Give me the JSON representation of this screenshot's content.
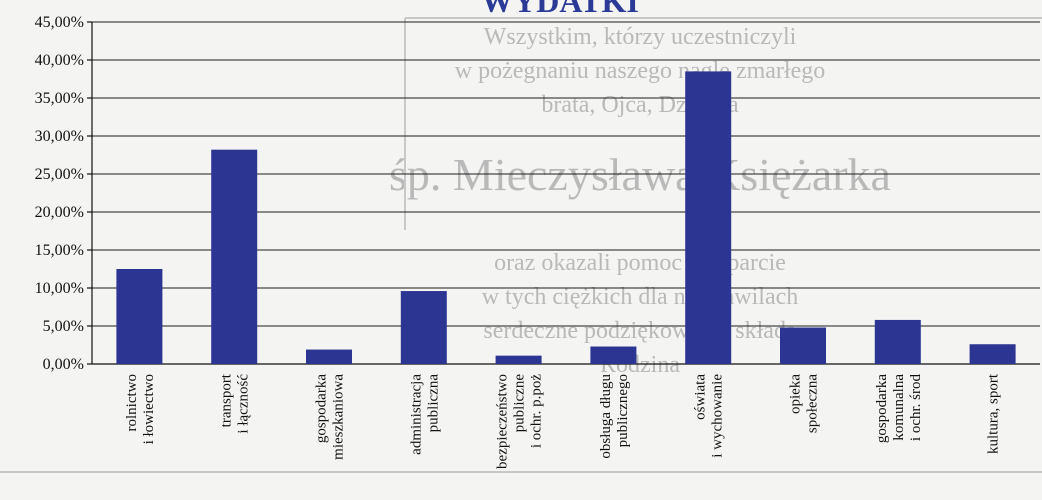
{
  "chart_data": {
    "type": "bar",
    "title": "WYDATKI",
    "xlabel": "",
    "ylabel": "",
    "ylim": [
      0,
      45
    ],
    "yticks": [
      "0,00%",
      "5,00%",
      "10,00%",
      "15,00%",
      "20,00%",
      "25,00%",
      "30,00%",
      "35,00%",
      "40,00%",
      "45,00%"
    ],
    "grid": true,
    "legend": "none",
    "bar_color": "#2d3593",
    "categories": [
      [
        "rolnictwo",
        "i łowiectwo"
      ],
      [
        "transport",
        "i łączność"
      ],
      [
        "gospodarka",
        "mieszkaniowa"
      ],
      [
        "administracja",
        "publiczna"
      ],
      [
        "bezpieczeństwo",
        "publiczne",
        "i ochr. p.poż"
      ],
      [
        "obsługa długu",
        "publicznego"
      ],
      [
        "oświata",
        "i wychowanie"
      ],
      [
        "opieka",
        "społeczna"
      ],
      [
        "gospodarka",
        "komunalna",
        "i ochr. środ"
      ],
      [
        "kultura, sport"
      ]
    ],
    "values": [
      12.5,
      28.2,
      1.9,
      9.6,
      1.1,
      2.3,
      38.5,
      4.8,
      5.8,
      2.6
    ]
  },
  "background_text": [
    "Wszystkim, którzy uczestniczyli",
    "w pożegnaniu naszego nagle zmarłego",
    "brata, Ojca, Dziadka",
    "śp. Mieczysława Księżarka",
    "oraz okazali pomoc i wsparcie",
    "w tych ciężkich dla nas chwilach",
    "serdeczne podziękowania składa",
    "Rodzina"
  ]
}
